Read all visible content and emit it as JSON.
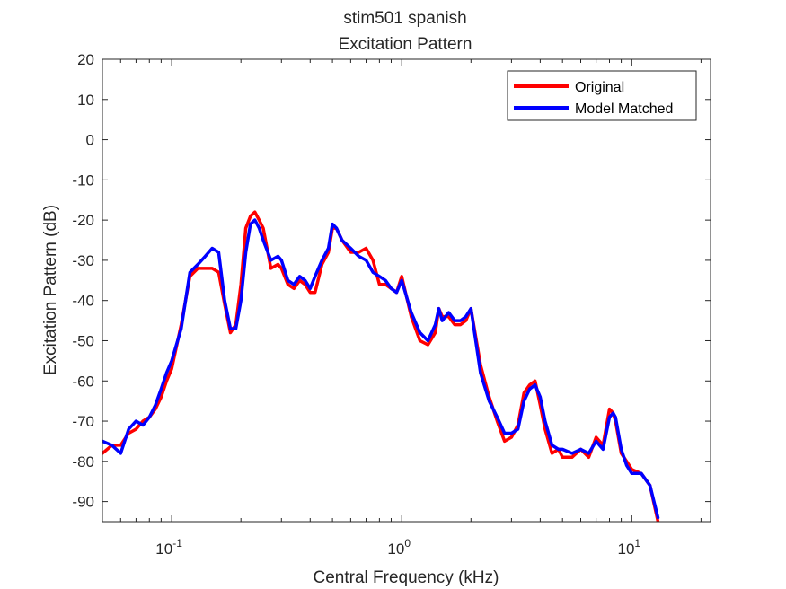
{
  "chart_data": {
    "type": "line",
    "title": "stim501 spanish",
    "subtitle": "Excitation Pattern",
    "xlabel": "Central Frequency (kHz)",
    "ylabel": "Excitation Pattern (dB)",
    "xscale": "log",
    "xlim": [
      0.05,
      22
    ],
    "ylim": [
      -95,
      20
    ],
    "yticks": [
      20,
      10,
      0,
      -10,
      -20,
      -30,
      -40,
      -50,
      -60,
      -70,
      -80,
      -90
    ],
    "xticks": [
      {
        "value": 0.1,
        "base": "10",
        "exp": "-1"
      },
      {
        "value": 1,
        "base": "10",
        "exp": "0"
      },
      {
        "value": 10,
        "base": "10",
        "exp": "1"
      }
    ],
    "grid": false,
    "legend_position": "top-right",
    "series": [
      {
        "name": "Original",
        "color": "#ff0000",
        "x": [
          0.05,
          0.055,
          0.06,
          0.065,
          0.07,
          0.075,
          0.08,
          0.085,
          0.09,
          0.095,
          0.1,
          0.11,
          0.12,
          0.13,
          0.14,
          0.15,
          0.16,
          0.17,
          0.18,
          0.19,
          0.2,
          0.21,
          0.22,
          0.23,
          0.24,
          0.25,
          0.27,
          0.29,
          0.3,
          0.32,
          0.34,
          0.36,
          0.38,
          0.4,
          0.42,
          0.45,
          0.48,
          0.5,
          0.52,
          0.55,
          0.6,
          0.65,
          0.7,
          0.75,
          0.8,
          0.85,
          0.9,
          0.95,
          1.0,
          1.1,
          1.2,
          1.3,
          1.4,
          1.45,
          1.5,
          1.6,
          1.7,
          1.8,
          1.9,
          2.0,
          2.2,
          2.4,
          2.6,
          2.8,
          3.0,
          3.2,
          3.4,
          3.6,
          3.8,
          4.0,
          4.2,
          4.5,
          4.8,
          5.0,
          5.5,
          6.0,
          6.5,
          7.0,
          7.5,
          8.0,
          8.3,
          8.5,
          9.0,
          9.5,
          10.0,
          11.0,
          12.0,
          13.0
        ],
        "y": [
          -78,
          -76,
          -76,
          -73,
          -72,
          -70,
          -69,
          -67,
          -64,
          -60,
          -57,
          -46,
          -34,
          -32,
          -32,
          -32,
          -33,
          -41,
          -48,
          -46,
          -36,
          -22,
          -19,
          -18,
          -20,
          -22,
          -32,
          -31,
          -32,
          -36,
          -37,
          -35,
          -36,
          -38,
          -38,
          -31,
          -28,
          -22,
          -22,
          -25,
          -28,
          -28,
          -27,
          -30,
          -36,
          -36,
          -37,
          -38,
          -34,
          -44,
          -50,
          -51,
          -48,
          -42,
          -44,
          -44,
          -46,
          -46,
          -45,
          -42,
          -56,
          -64,
          -70,
          -75,
          -74,
          -71,
          -63,
          -61,
          -60,
          -66,
          -72,
          -78,
          -77,
          -79,
          -79,
          -77,
          -79,
          -74,
          -76,
          -67,
          -68,
          -70,
          -78,
          -80,
          -82,
          -83,
          -86,
          -95
        ]
      },
      {
        "name": "Model Matched",
        "color": "#0000ff",
        "x": [
          0.05,
          0.055,
          0.06,
          0.065,
          0.07,
          0.075,
          0.08,
          0.085,
          0.09,
          0.095,
          0.1,
          0.11,
          0.12,
          0.13,
          0.14,
          0.15,
          0.16,
          0.17,
          0.18,
          0.19,
          0.2,
          0.21,
          0.22,
          0.23,
          0.24,
          0.25,
          0.27,
          0.29,
          0.3,
          0.32,
          0.34,
          0.36,
          0.38,
          0.4,
          0.42,
          0.45,
          0.48,
          0.5,
          0.52,
          0.55,
          0.6,
          0.65,
          0.7,
          0.75,
          0.8,
          0.85,
          0.9,
          0.95,
          1.0,
          1.1,
          1.2,
          1.3,
          1.4,
          1.45,
          1.5,
          1.6,
          1.7,
          1.8,
          1.9,
          2.0,
          2.2,
          2.4,
          2.6,
          2.8,
          3.0,
          3.2,
          3.4,
          3.6,
          3.8,
          4.0,
          4.2,
          4.5,
          4.8,
          5.0,
          5.5,
          6.0,
          6.5,
          7.0,
          7.5,
          8.0,
          8.3,
          8.5,
          9.0,
          9.5,
          10.0,
          11.0,
          12.0,
          13.0
        ],
        "y": [
          -75,
          -76,
          -78,
          -72,
          -70,
          -71,
          -69,
          -66,
          -62,
          -58,
          -55,
          -47,
          -33,
          -31,
          -29,
          -27,
          -28,
          -40,
          -47,
          -47,
          -40,
          -28,
          -21,
          -20,
          -22,
          -25,
          -30,
          -29,
          -30,
          -35,
          -36,
          -34,
          -35,
          -37,
          -34,
          -30,
          -27,
          -21,
          -22,
          -25,
          -27,
          -29,
          -30,
          -33,
          -34,
          -35,
          -37,
          -38,
          -35,
          -43,
          -48,
          -50,
          -46,
          -42,
          -45,
          -43,
          -45,
          -45,
          -44,
          -42,
          -58,
          -65,
          -69,
          -73,
          -73,
          -72,
          -65,
          -62,
          -61,
          -64,
          -70,
          -76,
          -77,
          -77,
          -78,
          -77,
          -78,
          -75,
          -77,
          -69,
          -68,
          -69,
          -77,
          -81,
          -83,
          -83,
          -86,
          -94
        ]
      }
    ]
  }
}
